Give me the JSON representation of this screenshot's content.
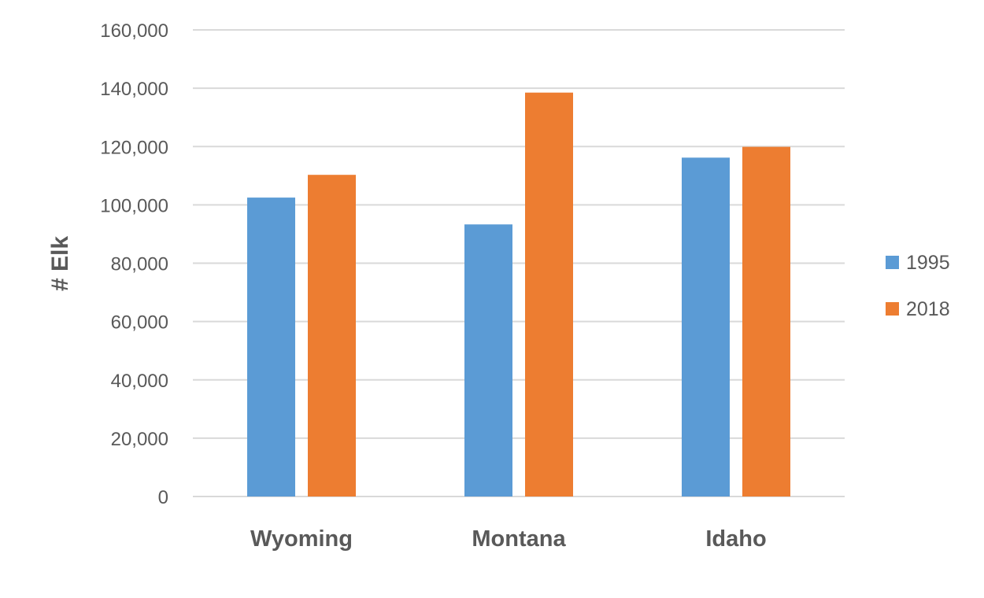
{
  "chart_data": {
    "type": "bar",
    "title": "",
    "xlabel": "",
    "ylabel": "# Elk",
    "ylim": [
      0,
      160000
    ],
    "yticks": [
      "0",
      "20,000",
      "40,000",
      "60,000",
      "80,000",
      "100,000",
      "120,000",
      "140,000",
      "160,000"
    ],
    "grid": true,
    "legend_position": "right",
    "categories": [
      "Wyoming",
      "Montana",
      "Idaho"
    ],
    "series": [
      {
        "name": "1995",
        "color": "#5B9BD5",
        "values": [
          102500,
          93300,
          116200
        ]
      },
      {
        "name": "2018",
        "color": "#ED7D31",
        "values": [
          110300,
          138500,
          119900
        ]
      }
    ]
  }
}
